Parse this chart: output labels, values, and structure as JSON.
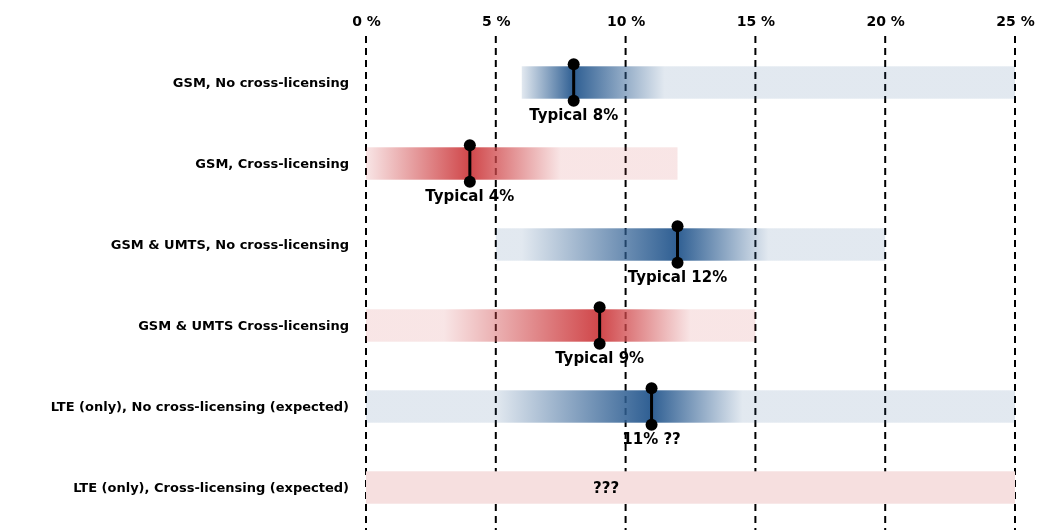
{
  "chart_data": {
    "type": "bar",
    "orientation": "horizontal",
    "categories": [
      "GSM, No cross-licensing",
      "GSM, Cross-licensing",
      "GSM & UMTS, No cross-licensing",
      "GSM & UMTS Cross-licensing",
      "LTE (only), No cross-licensing (expected)",
      "LTE (only), Cross-licensing (expected)"
    ],
    "series": [
      {
        "colors": [
          "#2f5f93",
          "#d0474a",
          "#2f5f93",
          "#d0474a",
          "#2f5f93",
          "#f6dfdf"
        ],
        "base": [
          6,
          0,
          5,
          0,
          0,
          0
        ],
        "values": [
          19,
          12,
          15,
          15,
          25,
          25
        ]
      },
      {
        "type": "scatter",
        "color": "#000000",
        "values": [
          8,
          4,
          12,
          9,
          11,
          null
        ]
      }
    ],
    "xlim": [
      0,
      25
    ],
    "xticks": [
      {
        "value": 0,
        "label": "0 %"
      },
      {
        "value": 5,
        "label": "5 %"
      },
      {
        "value": 10,
        "label": "10 %"
      },
      {
        "value": 15,
        "label": "15 %"
      },
      {
        "value": 20,
        "label": "20 %"
      },
      {
        "value": 25,
        "label": "25 %"
      }
    ],
    "grid": "x",
    "line_style": "dashed",
    "annotations": [
      "Typical 8%",
      "Typical 4%",
      "Typical 12%",
      "Typical 9%",
      "11% ??",
      "???"
    ]
  }
}
